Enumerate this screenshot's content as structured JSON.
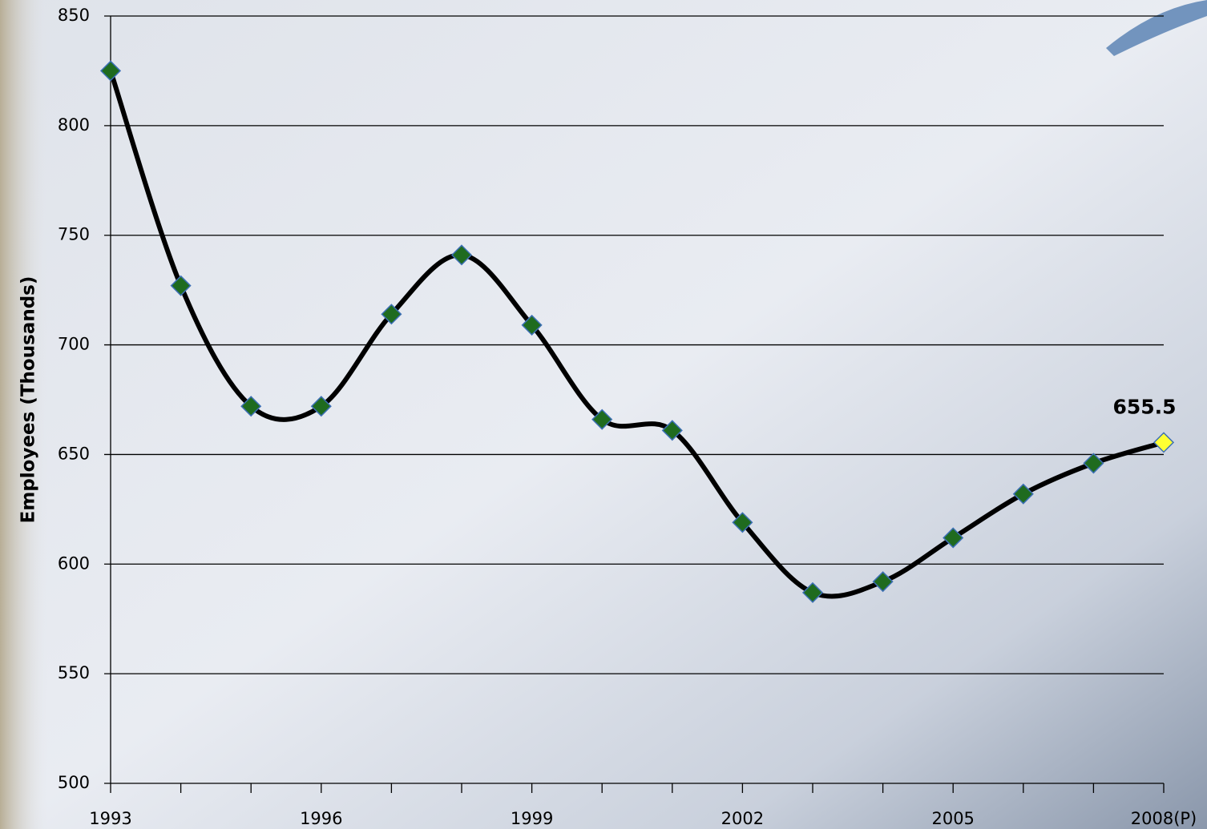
{
  "chart_data": {
    "type": "line",
    "y_label": "Employees (Thousands)",
    "categories": [
      "1993",
      null,
      null,
      "1996",
      null,
      null,
      "1999",
      null,
      null,
      "2002",
      null,
      null,
      "2005",
      null,
      null,
      "2008(P)"
    ],
    "series": [
      {
        "name": "Employees",
        "color": "#000000",
        "marker_color": "#1f6b1f",
        "marker_edge": "#3c6fb4",
        "values": [
          825,
          727,
          672,
          672,
          714,
          741,
          709,
          666,
          661,
          619,
          587,
          592,
          612,
          632,
          646,
          655.5
        ]
      }
    ],
    "last_point_color": "#ffff33",
    "ylim": [
      500,
      850
    ],
    "yticks": [
      500,
      550,
      600,
      650,
      700,
      750,
      800,
      850
    ],
    "grid": true
  }
}
